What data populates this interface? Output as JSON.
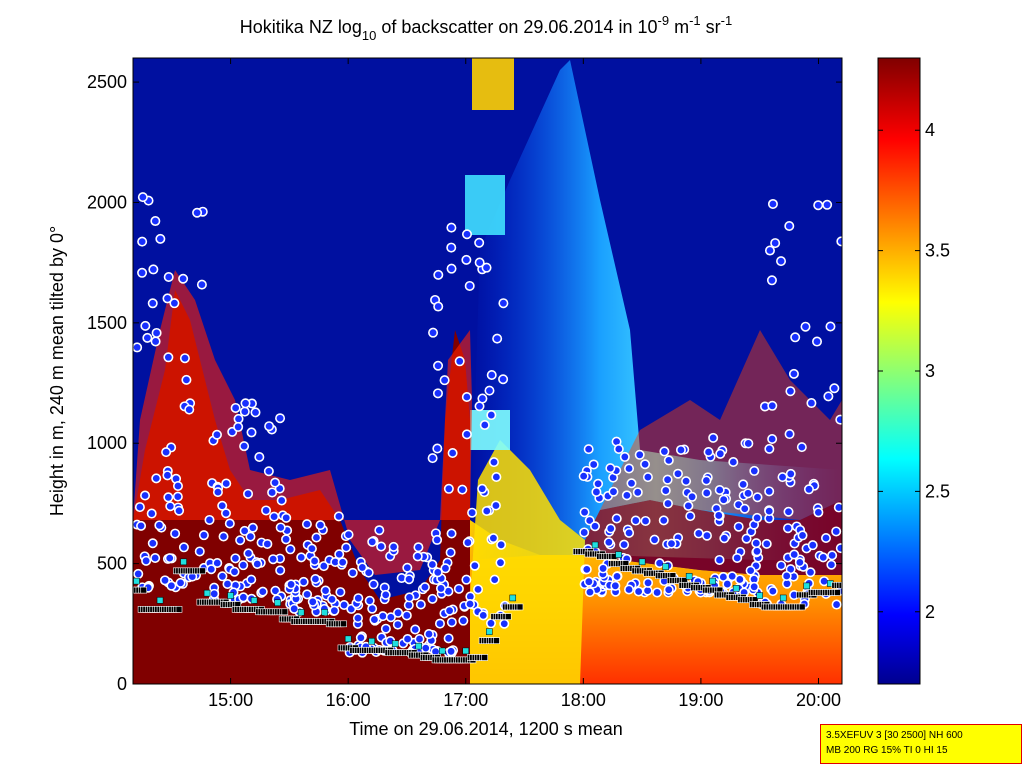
{
  "chart_data": {
    "type": "heatmap",
    "title_main": "Hokitika NZ log",
    "title_sub": "10",
    "title_mid": " of backscatter on 29.06.2014 in 10",
    "title_exp1": "-9",
    "title_unit1": " m",
    "title_exp2": "-1",
    "title_unit2": " sr",
    "title_exp3": "-1",
    "xlabel": "Time on 29.06.2014, 1200 s mean",
    "ylabel": "Height in m, 240 m mean tilted by 0°",
    "xlim_hours": [
      14.17,
      20.2
    ],
    "ylim": [
      0,
      2600
    ],
    "x_ticks": [
      {
        "hour": 15,
        "label": "15:00"
      },
      {
        "hour": 16,
        "label": "16:00"
      },
      {
        "hour": 17,
        "label": "17:00"
      },
      {
        "hour": 18,
        "label": "18:00"
      },
      {
        "hour": 19,
        "label": "19:00"
      },
      {
        "hour": 20,
        "label": "20:00"
      }
    ],
    "y_ticks": [
      {
        "value": 0,
        "label": "0"
      },
      {
        "value": 500,
        "label": "500"
      },
      {
        "value": 1000,
        "label": "1000"
      },
      {
        "value": 1500,
        "label": "1500"
      },
      {
        "value": 2000,
        "label": "2000"
      },
      {
        "value": 2500,
        "label": "2500"
      }
    ],
    "colorbar": {
      "range": [
        1.7,
        4.3
      ],
      "colormap": "jet",
      "ticks": [
        {
          "value": 2,
          "label": "2"
        },
        {
          "value": 2.5,
          "label": "2.5"
        },
        {
          "value": 3,
          "label": "3"
        },
        {
          "value": 3.5,
          "label": "3.5"
        },
        {
          "value": 4,
          "label": "4"
        }
      ]
    },
    "cloud_base_layer": {
      "name": "cloud base",
      "points": [
        [
          14.2,
          390
        ],
        [
          14.3,
          310
        ],
        [
          14.4,
          310
        ],
        [
          14.5,
          310
        ],
        [
          14.6,
          470
        ],
        [
          14.7,
          470
        ],
        [
          14.8,
          340
        ],
        [
          14.9,
          340
        ],
        [
          15.0,
          330
        ],
        [
          15.1,
          310
        ],
        [
          15.2,
          310
        ],
        [
          15.3,
          300
        ],
        [
          15.4,
          300
        ],
        [
          15.5,
          270
        ],
        [
          15.6,
          260
        ],
        [
          15.7,
          260
        ],
        [
          15.8,
          260
        ],
        [
          15.9,
          250
        ],
        [
          16.0,
          150
        ],
        [
          16.1,
          140
        ],
        [
          16.2,
          140
        ],
        [
          16.3,
          140
        ],
        [
          16.4,
          130
        ],
        [
          16.5,
          130
        ],
        [
          16.6,
          120
        ],
        [
          16.7,
          110
        ],
        [
          16.8,
          100
        ],
        [
          16.9,
          100
        ],
        [
          17.0,
          100
        ],
        [
          17.1,
          110
        ],
        [
          17.2,
          180
        ],
        [
          17.3,
          280
        ],
        [
          17.4,
          320
        ],
        [
          18.0,
          550
        ],
        [
          18.1,
          540
        ],
        [
          18.2,
          530
        ],
        [
          18.3,
          500
        ],
        [
          18.4,
          480
        ],
        [
          18.5,
          470
        ],
        [
          18.6,
          460
        ],
        [
          18.7,
          450
        ],
        [
          18.8,
          430
        ],
        [
          18.9,
          410
        ],
        [
          19.0,
          400
        ],
        [
          19.1,
          390
        ],
        [
          19.2,
          370
        ],
        [
          19.3,
          360
        ],
        [
          19.4,
          350
        ],
        [
          19.5,
          330
        ],
        [
          19.6,
          320
        ],
        [
          19.7,
          320
        ],
        [
          19.8,
          320
        ],
        [
          19.9,
          370
        ],
        [
          20.0,
          380
        ],
        [
          20.1,
          380
        ],
        [
          20.2,
          410
        ]
      ]
    },
    "scatter_detections": {
      "name": "aerosol layer detections",
      "region_clusters": [
        {
          "x_range": [
            14.2,
            14.8
          ],
          "y_range": [
            400,
            2050
          ]
        },
        {
          "x_range": [
            14.8,
            15.5
          ],
          "y_range": [
            350,
            1180
          ]
        },
        {
          "x_range": [
            15.5,
            16.0
          ],
          "y_range": [
            300,
            700
          ]
        },
        {
          "x_range": [
            16.0,
            16.9
          ],
          "y_range": [
            130,
            640
          ]
        },
        {
          "x_range": [
            16.7,
            17.35
          ],
          "y_range": [
            250,
            1930
          ]
        },
        {
          "x_range": [
            18.0,
            19.5
          ],
          "y_range": [
            380,
            1050
          ]
        },
        {
          "x_range": [
            19.5,
            20.2
          ],
          "y_range": [
            330,
            2030
          ]
        }
      ]
    }
  },
  "info_box": {
    "line1": "3.5XEFUV 3 [30 2500] NH 600",
    "line2": "MB 200 RG 15% TI 0 HI 15"
  }
}
